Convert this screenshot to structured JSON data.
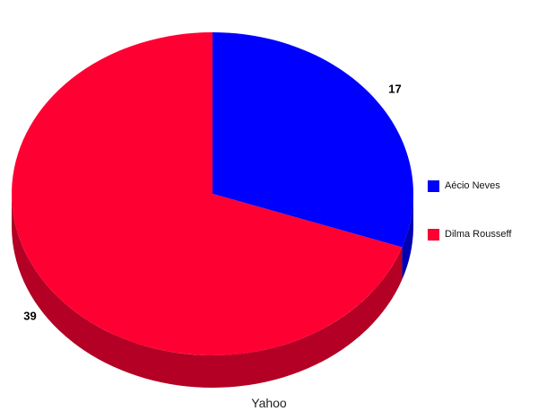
{
  "chart_data": {
    "type": "pie",
    "categories": [
      "Aécio Neves",
      "Dilma Rousseff"
    ],
    "values": [
      17,
      39
    ],
    "data_labels": [
      "17",
      "39"
    ],
    "caption": "Yahoo",
    "legend_placement": "right",
    "colors": {
      "Aécio Neves": "#0000ff",
      "Dilma Rousseff": "#ff0033"
    }
  }
}
